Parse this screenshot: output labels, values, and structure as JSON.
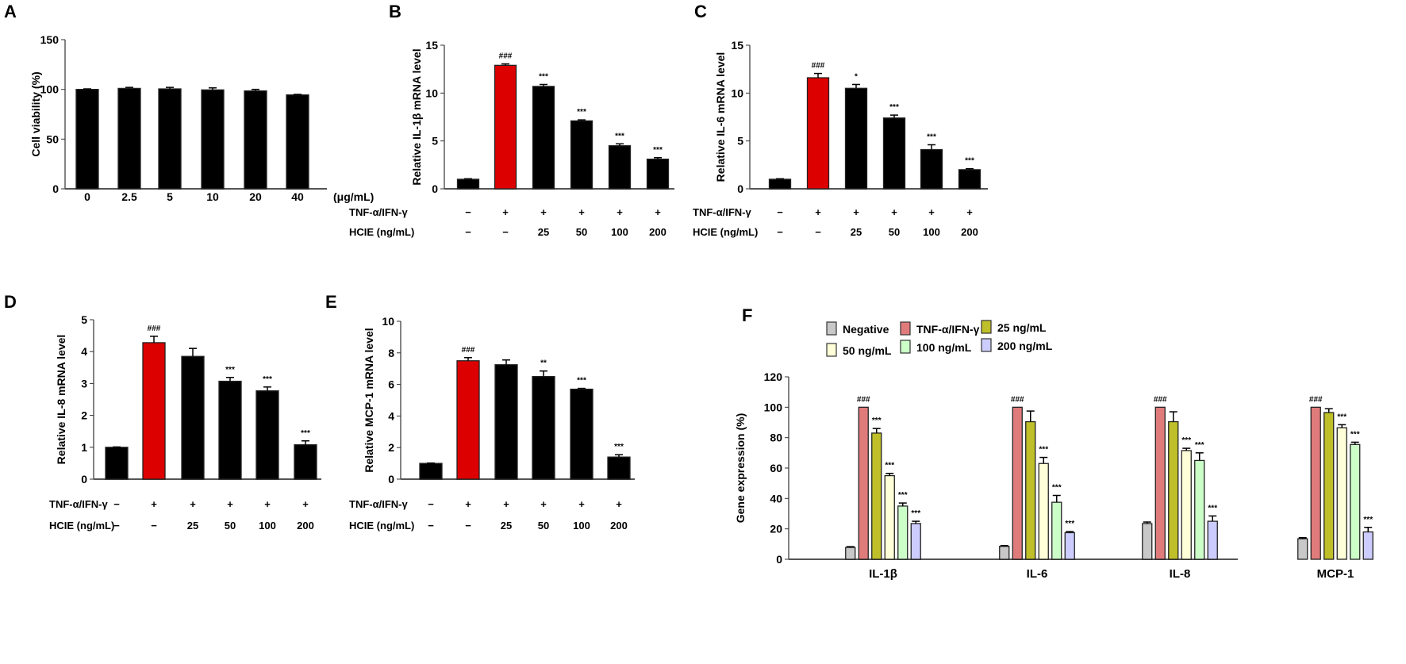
{
  "chart_data": [
    {
      "id": "A",
      "type": "bar",
      "panel_label": "A",
      "ylabel": "Cell viability (%)",
      "ylim": [
        0,
        150
      ],
      "yticks": [
        0,
        50,
        100,
        150
      ],
      "categories": [
        "0",
        "2.5",
        "5",
        "10",
        "20",
        "40"
      ],
      "unit_label": "(μg/mL)",
      "values": [
        100,
        101,
        100.5,
        99.5,
        98.5,
        94.5
      ],
      "errors": [
        0.5,
        1,
        1.5,
        2,
        1.5,
        0.5
      ],
      "colors": [
        "#000000",
        "#000000",
        "#000000",
        "#000000",
        "#000000",
        "#000000"
      ],
      "significance": [
        "",
        "",
        "",
        "",
        "",
        ""
      ]
    },
    {
      "id": "B",
      "type": "bar",
      "panel_label": "B",
      "ylabel": "Relative IL-1β mRNA level",
      "ylim": [
        0,
        15
      ],
      "yticks": [
        0,
        5,
        10,
        15
      ],
      "rows": [
        {
          "label": "TNF-α/IFN-γ",
          "values": [
            "−",
            "+",
            "+",
            "+",
            "+",
            "+"
          ]
        },
        {
          "label": "HCIE (ng/mL)",
          "values": [
            "−",
            "−",
            "25",
            "50",
            "100",
            "200"
          ]
        }
      ],
      "values": [
        1,
        12.9,
        10.7,
        7.1,
        4.5,
        3.1
      ],
      "errors": [
        0.05,
        0.15,
        0.2,
        0.1,
        0.2,
        0.15
      ],
      "colors": [
        "#000000",
        "#dd0000",
        "#000000",
        "#000000",
        "#000000",
        "#000000"
      ],
      "significance": [
        "",
        "###",
        "***",
        "***",
        "***",
        "***"
      ]
    },
    {
      "id": "C",
      "type": "bar",
      "panel_label": "C",
      "ylabel": "Relative IL-6 mRNA level",
      "ylim": [
        0,
        15
      ],
      "yticks": [
        0,
        5,
        10,
        15
      ],
      "rows": [
        {
          "label": "TNF-α/IFN-γ",
          "values": [
            "−",
            "+",
            "+",
            "+",
            "+",
            "+"
          ]
        },
        {
          "label": "HCIE (ng/mL)",
          "values": [
            "−",
            "−",
            "25",
            "50",
            "100",
            "200"
          ]
        }
      ],
      "values": [
        1,
        11.6,
        10.5,
        7.4,
        4.1,
        2.0
      ],
      "errors": [
        0.05,
        0.45,
        0.4,
        0.3,
        0.5,
        0.1
      ],
      "colors": [
        "#000000",
        "#dd0000",
        "#000000",
        "#000000",
        "#000000",
        "#000000"
      ],
      "significance": [
        "",
        "###",
        "*",
        "***",
        "***",
        "***"
      ]
    },
    {
      "id": "D",
      "type": "bar",
      "panel_label": "D",
      "ylabel": "Relative IL-8 mRNA level",
      "ylim": [
        0,
        5
      ],
      "yticks": [
        0,
        1,
        2,
        3,
        4,
        5
      ],
      "rows": [
        {
          "label": "TNF-α/IFN-γ",
          "values": [
            "−",
            "+",
            "+",
            "+",
            "+",
            "+"
          ]
        },
        {
          "label": "HCIE (ng/mL)",
          "values": [
            "−",
            "−",
            "25",
            "50",
            "100",
            "200"
          ]
        }
      ],
      "values": [
        1,
        4.28,
        3.85,
        3.07,
        2.77,
        1.08
      ],
      "errors": [
        0.01,
        0.2,
        0.25,
        0.12,
        0.12,
        0.12
      ],
      "colors": [
        "#000000",
        "#dd0000",
        "#000000",
        "#000000",
        "#000000",
        "#000000"
      ],
      "significance": [
        "",
        "###",
        "",
        "***",
        "***",
        "***"
      ]
    },
    {
      "id": "E",
      "type": "bar",
      "panel_label": "E",
      "ylabel": "Relative MCP-1 mRNA level",
      "ylim": [
        0,
        10
      ],
      "yticks": [
        0,
        2,
        4,
        6,
        8,
        10
      ],
      "rows": [
        {
          "label": "TNF-α/IFN-γ",
          "values": [
            "−",
            "+",
            "+",
            "+",
            "+",
            "+"
          ]
        },
        {
          "label": "HCIE (ng/mL)",
          "values": [
            "−",
            "−",
            "25",
            "50",
            "100",
            "200"
          ]
        }
      ],
      "values": [
        1,
        7.5,
        7.25,
        6.5,
        5.7,
        1.4
      ],
      "errors": [
        0.02,
        0.2,
        0.3,
        0.35,
        0.05,
        0.15
      ],
      "colors": [
        "#000000",
        "#dd0000",
        "#000000",
        "#000000",
        "#000000",
        "#000000"
      ],
      "significance": [
        "",
        "###",
        "",
        "**",
        "***",
        "***"
      ]
    },
    {
      "id": "F",
      "type": "bar",
      "panel_label": "F",
      "ylabel": "Gene expression (%)",
      "ylim": [
        0,
        120
      ],
      "yticks": [
        0,
        20,
        40,
        60,
        80,
        100,
        120
      ],
      "categories": [
        "IL-1β",
        "IL-6",
        "IL-8",
        "MCP-1"
      ],
      "legend_position": "top",
      "series": [
        {
          "name": "Negative",
          "color": "#c8c8c8",
          "values": [
            7.8,
            8.5,
            23.5,
            13.5
          ],
          "errors": [
            0.5,
            0.5,
            1,
            0.7
          ],
          "significance": [
            "",
            "",
            "",
            ""
          ]
        },
        {
          "name": "TNF-α/IFN-γ",
          "color": "#e07b7b",
          "values": [
            100,
            100,
            100,
            100
          ],
          "errors": [
            0,
            0,
            0,
            0
          ],
          "significance": [
            "###",
            "###",
            "###",
            "###"
          ]
        },
        {
          "name": "25 ng/mL",
          "color": "#bfbf2a",
          "values": [
            83,
            90.5,
            90.5,
            96.5
          ],
          "errors": [
            3,
            7,
            6.5,
            2.5
          ],
          "significance": [
            "***",
            "",
            "",
            ""
          ]
        },
        {
          "name": "50 ng/mL",
          "color": "#ffffd8",
          "values": [
            55,
            63,
            71.5,
            86.5
          ],
          "errors": [
            1.5,
            4,
            1.5,
            2
          ],
          "significance": [
            "***",
            "***",
            "***",
            "***"
          ]
        },
        {
          "name": "100 ng/mL",
          "color": "#ccffc8",
          "values": [
            35,
            37.5,
            65,
            75.5
          ],
          "errors": [
            2,
            4.5,
            5,
            1.5
          ],
          "significance": [
            "***",
            "***",
            "***",
            "***"
          ]
        },
        {
          "name": "200 ng/mL",
          "color": "#ccccff",
          "values": [
            23.5,
            17.5,
            25,
            18
          ],
          "errors": [
            1.5,
            0.7,
            3.5,
            3
          ],
          "significance": [
            "***",
            "***",
            "***",
            "***"
          ]
        }
      ]
    }
  ]
}
